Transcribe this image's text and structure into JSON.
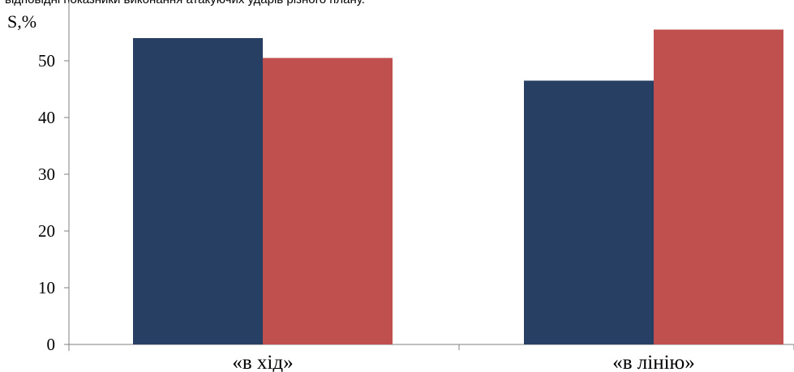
{
  "caption": "відповідні показники виконання атакуючих ударів різного плану.",
  "chart_data": {
    "type": "bar",
    "title": "",
    "xlabel": "",
    "ylabel": "S,%",
    "ylim": [
      0,
      55
    ],
    "yticks": [
      0,
      10,
      20,
      30,
      40,
      50
    ],
    "categories": [
      "«в хід»",
      "«в лінію»"
    ],
    "series": [
      {
        "color": "#263f63",
        "values": [
          54,
          46.5
        ]
      },
      {
        "color": "#c0504d",
        "values": [
          50.5,
          55.5
        ]
      }
    ],
    "grid": false,
    "legend": "none"
  }
}
